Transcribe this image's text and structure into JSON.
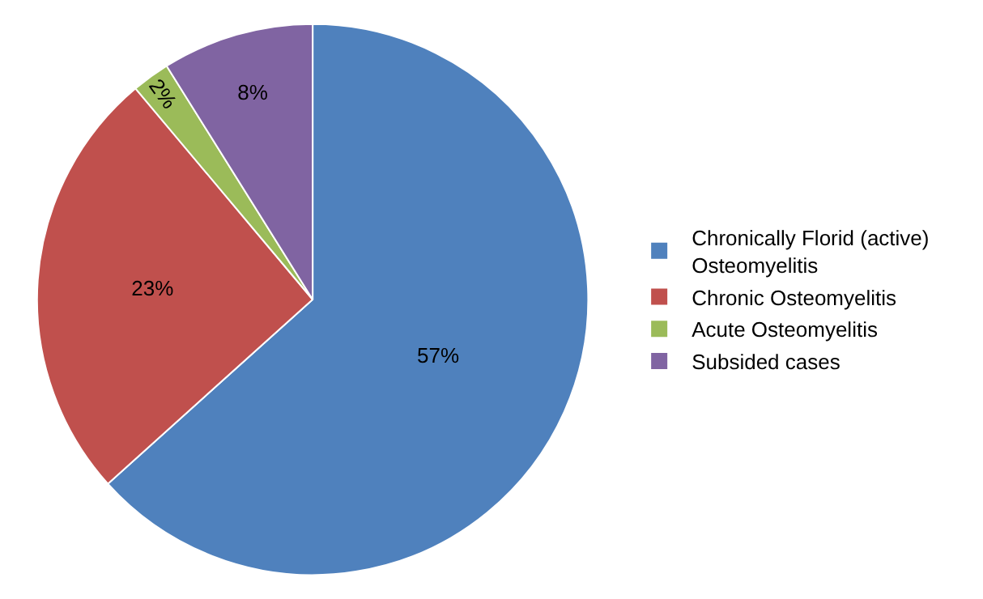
{
  "chart_data": {
    "type": "pie",
    "categories": [
      "Chronically Florid (active) Osteomyelitis",
      "Chronic Osteomyelitis",
      "Acute Osteomyelitis",
      "Subsided cases"
    ],
    "values": [
      57,
      23,
      2,
      8
    ],
    "value_labels": [
      "57%",
      "23%",
      "2%",
      "8%"
    ],
    "colors": [
      "#4f81bd",
      "#c0504d",
      "#9bbb59",
      "#8064a2"
    ],
    "legend": "right"
  }
}
